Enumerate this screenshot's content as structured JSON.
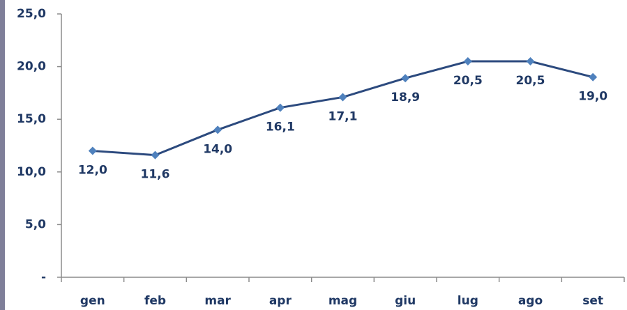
{
  "chart_data": {
    "type": "line",
    "categories": [
      "gen",
      "feb",
      "mar",
      "apr",
      "mag",
      "giu",
      "lug",
      "ago",
      "set"
    ],
    "values": [
      12.0,
      11.6,
      14.0,
      16.1,
      17.1,
      18.9,
      20.5,
      20.5,
      19.0
    ],
    "value_labels": [
      "12,0",
      "11,6",
      "14,0",
      "16,1",
      "17,1",
      "18,9",
      "20,5",
      "20,5",
      "19,0"
    ],
    "color": "#4f81bd",
    "line_color": "#2c4a7e",
    "ylim": [
      0,
      25
    ],
    "yticks": [
      {
        "value": 0,
        "label": "-"
      },
      {
        "value": 5,
        "label": "5,0"
      },
      {
        "value": 10,
        "label": "10,0"
      },
      {
        "value": 15,
        "label": "15,0"
      },
      {
        "value": 20,
        "label": "20,0"
      },
      {
        "value": 25,
        "label": "25,0"
      }
    ],
    "grid": false
  }
}
